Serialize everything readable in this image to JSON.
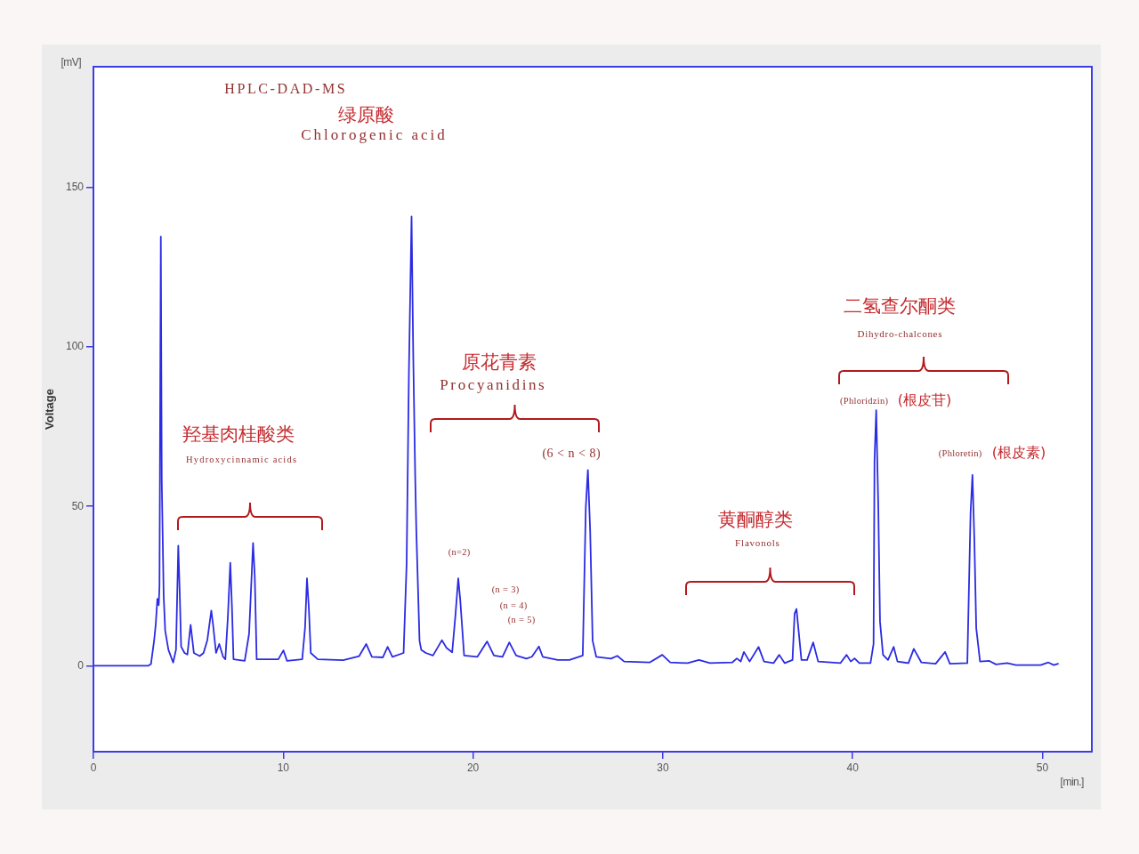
{
  "chart_data": {
    "type": "line",
    "title": "HPLC-DAD-MS",
    "ylabel": "Voltage",
    "color": "#2b2be3",
    "marker": "none",
    "line_style": "solid",
    "xlim": [
      0,
      52.6
    ],
    "ylim": [
      -27,
      188
    ],
    "xticks": [
      0,
      10,
      20,
      30,
      40,
      50
    ],
    "yticks": [
      0,
      50,
      100,
      150
    ],
    "x": [
      0,
      1.5,
      2.9,
      3.03,
      3.2,
      3.28,
      3.37,
      3.44,
      3.48,
      3.55,
      3.6,
      3.65,
      3.7,
      3.78,
      3.95,
      4.2,
      4.35,
      4.47,
      4.55,
      4.62,
      4.8,
      4.95,
      5.12,
      5.29,
      5.6,
      5.8,
      6.0,
      6.21,
      6.3,
      6.46,
      6.63,
      6.83,
      6.95,
      7.08,
      7.21,
      7.3,
      7.38,
      7.97,
      8.2,
      8.41,
      8.5,
      8.6,
      9.74,
      10.01,
      10.2,
      11.0,
      11.15,
      11.25,
      11.35,
      11.45,
      11.82,
      13.16,
      14.0,
      14.37,
      14.67,
      15.25,
      15.5,
      15.75,
      16.34,
      16.5,
      16.62,
      16.76,
      16.85,
      16.95,
      17.01,
      17.18,
      17.27,
      17.51,
      17.89,
      18.36,
      18.6,
      18.9,
      19.07,
      19.22,
      19.32,
      19.41,
      19.53,
      20.23,
      20.74,
      21.1,
      21.55,
      21.91,
      22.27,
      22.81,
      23.1,
      23.47,
      23.67,
      24.46,
      25.08,
      25.78,
      25.94,
      26.05,
      26.17,
      26.3,
      26.49,
      27.27,
      27.6,
      27.96,
      29.3,
      29.97,
      30.39,
      31.31,
      31.9,
      32.48,
      33.65,
      33.9,
      34.1,
      34.27,
      34.57,
      35.04,
      35.33,
      35.83,
      36.13,
      36.42,
      36.83,
      36.94,
      37.04,
      37.17,
      37.3,
      37.6,
      37.92,
      38.18,
      39.35,
      39.68,
      39.9,
      40.1,
      40.35,
      40.94,
      41.1,
      41.15,
      41.24,
      41.35,
      41.44,
      41.6,
      41.86,
      42.16,
      42.36,
      42.94,
      43.22,
      43.62,
      44.37,
      44.87,
      45.12,
      46.04,
      46.21,
      46.31,
      46.41,
      46.51,
      46.71,
      47.2,
      47.55,
      48.14,
      48.6,
      49.9,
      50.31,
      50.6,
      50.82
    ],
    "values": [
      0,
      0,
      0,
      0.5,
      8,
      12.8,
      21,
      19,
      25,
      134.7,
      57.7,
      40,
      22,
      11,
      5,
      1,
      5,
      37.7,
      22,
      6,
      4,
      3.5,
      12.8,
      4,
      3,
      4,
      8,
      17.3,
      13,
      4,
      6.8,
      2.8,
      2,
      15,
      32.3,
      18,
      2,
      1.5,
      10,
      38.5,
      28,
      2,
      2,
      4.8,
      1.5,
      2,
      12,
      27.4,
      18,
      4,
      2,
      1.7,
      3,
      6.8,
      2.8,
      2.6,
      5.9,
      2.8,
      4,
      32,
      92,
      141,
      97,
      60,
      42.7,
      7.8,
      5,
      4,
      3.2,
      8,
      5.6,
      4.2,
      15.7,
      27.4,
      21,
      13.4,
      3.2,
      2.8,
      7.6,
      3.2,
      2.8,
      7.3,
      3.2,
      2.2,
      2.8,
      6,
      2.8,
      1.8,
      1.8,
      3.2,
      49.7,
      61.4,
      42.3,
      7.8,
      2.8,
      2.2,
      3.1,
      1.3,
      1,
      3.4,
      1,
      0.8,
      1.8,
      0.8,
      1,
      2.3,
      1.3,
      4.3,
      1.3,
      5.9,
      1.3,
      0.8,
      3.4,
      0.8,
      1.8,
      16.3,
      17.8,
      9.8,
      1.8,
      1.8,
      7.3,
      1.3,
      0.8,
      3.4,
      1.3,
      2.3,
      0.8,
      0.8,
      6.8,
      64.2,
      80.2,
      49.7,
      13.8,
      3.4,
      1.8,
      5.9,
      1.3,
      0.8,
      5.3,
      1,
      0.6,
      4.3,
      0.6,
      0.8,
      47.8,
      59.9,
      39.7,
      11.8,
      1.3,
      1.5,
      0.4,
      0.8,
      0.2,
      0.2,
      1,
      0.2,
      0.6
    ],
    "annotations": [
      "[mV]",
      "[min.]",
      "绿原酸",
      "Chlorogenic acid",
      "羟基肉桂酸类",
      "Hydroxycinnamic acids",
      "原花青素",
      "Procyanidins",
      "(6 < n < 8)",
      "(n=2)",
      "(n = 3)",
      "(n = 4)",
      "(n = 5)",
      "黄酮醇类",
      "Flavonols",
      "二氢查尔酮类",
      "Dihydro-chalcones",
      "(Phloridzin)",
      "(根皮苷)",
      "(Phloretin)",
      "(根皮素)"
    ]
  }
}
